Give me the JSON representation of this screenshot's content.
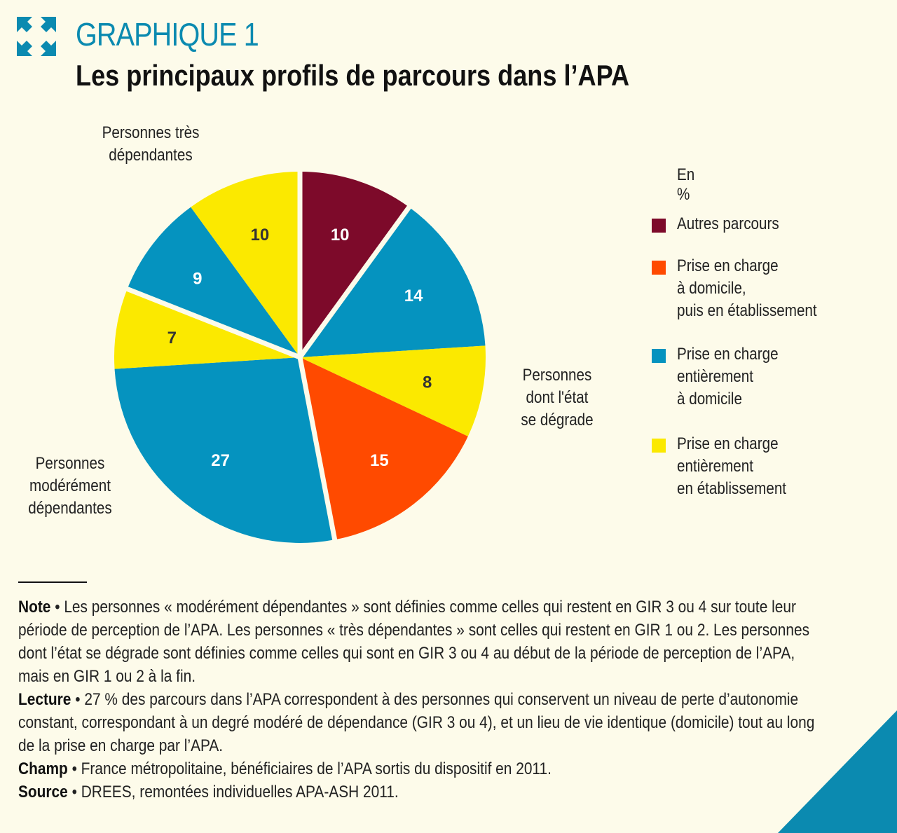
{
  "header": {
    "graph_number": "GRAPHIQUE 1",
    "title": "Les principaux profils de parcours dans l’APA"
  },
  "colors": {
    "autres": "#7d0a2a",
    "domicile_puis_etab": "#ff4a00",
    "domicile": "#0593bf",
    "etablissement": "#fbe900",
    "accent": "#0b8ab0"
  },
  "chart_data": {
    "type": "pie",
    "unit": "En %",
    "slices": [
      {
        "value": 10,
        "category": "Autres parcours",
        "color": "#7d0a2a",
        "label_color": "#ffffff"
      },
      {
        "value": 14,
        "category": "Prise en charge entièrement à domicile",
        "color": "#0593bf",
        "label_color": "#ffffff"
      },
      {
        "value": 8,
        "category": "Prise en charge entièrement en établissement",
        "color": "#fbe900",
        "label_color": "#333333"
      },
      {
        "value": 15,
        "category": "Prise en charge à domicile, puis en établissement",
        "color": "#ff4a00",
        "label_color": "#ffffff"
      },
      {
        "value": 27,
        "category": "Prise en charge entièrement à domicile",
        "color": "#0593bf",
        "label_color": "#ffffff"
      },
      {
        "value": 7,
        "category": "Prise en charge entièrement en établissement",
        "color": "#fbe900",
        "label_color": "#333333"
      },
      {
        "value": 9,
        "category": "Prise en charge entièrement à domicile",
        "color": "#0593bf",
        "label_color": "#ffffff"
      },
      {
        "value": 10,
        "category": "Prise en charge entièrement en établissement",
        "color": "#fbe900",
        "label_color": "#333333"
      }
    ],
    "groups": [
      {
        "name": "Personnes dont l'état se dégrade",
        "lines": [
          "Personnes",
          "dont l'état",
          "se dégrade"
        ],
        "slices": [
          1,
          2,
          3
        ]
      },
      {
        "name": "Personnes modérément dépendantes",
        "lines": [
          "Personnes",
          "modérément",
          "dépendantes"
        ],
        "slices": [
          4,
          5
        ]
      },
      {
        "name": "Personnes très dépendantes",
        "lines": [
          "Personnes très",
          "dépendantes"
        ],
        "slices": [
          6,
          7
        ]
      }
    ],
    "legend": [
      {
        "label": "Autres parcours",
        "lines": [
          "Autres parcours"
        ],
        "color": "#7d0a2a"
      },
      {
        "label": "Prise en charge à domicile, puis en établissement",
        "lines": [
          "Prise en charge",
          "à domicile,",
          "puis en établissement"
        ],
        "color": "#ff4a00"
      },
      {
        "label": "Prise en charge entièrement à domicile",
        "lines": [
          "Prise en charge",
          "entièrement",
          "à domicile"
        ],
        "color": "#0593bf"
      },
      {
        "label": "Prise en charge entièrement en établissement",
        "lines": [
          "Prise en charge",
          "entièrement",
          "en établissement"
        ],
        "color": "#fbe900"
      }
    ],
    "legend_position": "right"
  },
  "notes": [
    {
      "key": "Note",
      "text": " • Les personnes « modérément dépendantes » sont définies comme celles qui restent en GIR 3 ou 4 sur toute leur période de perception de l’APA. Les personnes « très dépendantes » sont celles qui restent en GIR 1 ou 2. Les personnes dont l’état se dégrade sont définies comme celles qui sont en GIR 3 ou 4 au début de la période de perception de l’APA, mais en GIR 1 ou 2 à la fin."
    },
    {
      "key": "Lecture",
      "text": " • 27 % des parcours dans l’APA correspondent à des personnes qui conservent un niveau de perte d’autonomie constant, correspondant à un degré modéré de dépendance (GIR 3 ou 4), et un lieu de vie identique (domicile) tout au long de la prise en charge par l’APA."
    },
    {
      "key": "Champ",
      "text": " • France métropolitaine, bénéficiaires de l’APA sortis du dispositif en 2011."
    },
    {
      "key": "Source",
      "text": " • DREES,  remontées individuelles APA-ASH 2011."
    }
  ]
}
